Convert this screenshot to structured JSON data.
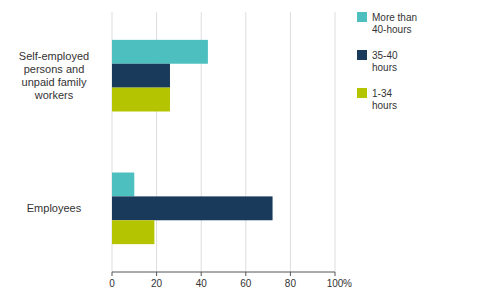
{
  "chart_data": {
    "type": "bar",
    "orientation": "horizontal",
    "categories": [
      "Employees",
      "Self-employed\npersons and\nunpaid family\nworkers"
    ],
    "series": [
      {
        "name": "More than\n40-hours",
        "color": "#4dbfbf",
        "values": [
          10,
          43
        ]
      },
      {
        "name": "35-40\nhours",
        "color": "#1a3a5c",
        "values": [
          72,
          26
        ]
      },
      {
        "name": "1-34\nhours",
        "color": "#b5c400",
        "values": [
          19,
          26
        ]
      }
    ],
    "xlim": [
      0,
      100
    ],
    "xticks": [
      0,
      20,
      40,
      60,
      80,
      100
    ],
    "xlabel": "%",
    "grid": true,
    "legend": "right"
  }
}
